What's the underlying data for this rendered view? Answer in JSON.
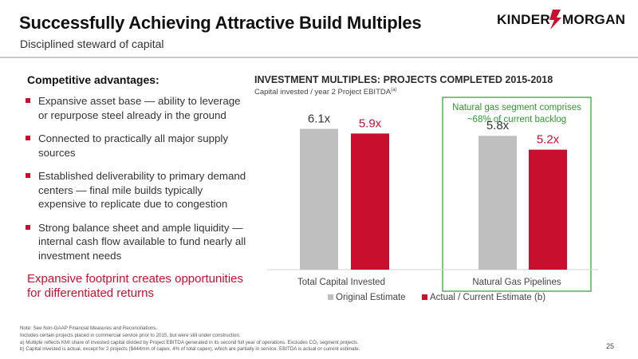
{
  "header": {
    "title": "Successfully Achieving Attractive Build Multiples",
    "subtitle": "Disciplined steward of capital",
    "logo_text_left": "KINDER",
    "logo_text_right": "MORGAN",
    "brand_color": "#c8102e",
    "logo_icon": "lightning-bolt-icon"
  },
  "left": {
    "heading": "Competitive advantages:",
    "bullets": [
      "Expansive asset base — ability to leverage or repurpose steel already in the ground",
      "Connected to practically all major supply sources",
      "Established deliverability to primary demand centers — final mile builds typically expensive to replicate due to congestion",
      "Strong balance sheet and ample liquidity — internal cash flow available to fund nearly all investment needs"
    ],
    "callout": "Expansive footprint creates opportunities for differentiated returns"
  },
  "chart_heading": {
    "title": "INVESTMENT MULTIPLES: PROJECTS COMPLETED 2015-2018",
    "subtitle": "Capital invested / year 2 Project EBITDA",
    "subtitle_note": "(a)"
  },
  "chart_data": {
    "type": "bar",
    "categories": [
      "Total Capital Invested",
      "Natural Gas Pipelines"
    ],
    "series": [
      {
        "name": "Original Estimate",
        "values": [
          6.1,
          5.8
        ],
        "labels": [
          "6.1x",
          "5.8x"
        ],
        "color": "#bfbfbf",
        "label_color": "#333333"
      },
      {
        "name": "Actual / Current Estimate (b)",
        "values": [
          5.9,
          5.2
        ],
        "labels": [
          "5.9x",
          "5.2x"
        ],
        "color": "#c8102e",
        "label_color": "#c8102e"
      }
    ],
    "ylim": [
      0,
      6.5
    ],
    "grid": false,
    "legend": "bottom",
    "highlight": {
      "category": "Natural Gas Pipelines",
      "color": "#2e9a2e"
    },
    "annotation": "Natural gas segment comprises ~68% of current backlog"
  },
  "footnote": {
    "lines": [
      "Note:  See Non-GAAP Financial Measures and Reconciliations.",
      "Includes certain projects placed in commercial service prior to 2015, but were still under construction.",
      "a)  Multiple reflects KMI share of invested capital divided by Project EBITDA generated in its second full year of operations. Excludes CO₂ segment projects.",
      "b)  Capital invested is actual, except for 2 projects ($444mm of capex, 4% of total capex), which are partially in service. EBITDA is actual or current estimate."
    ]
  },
  "page_number": "25"
}
